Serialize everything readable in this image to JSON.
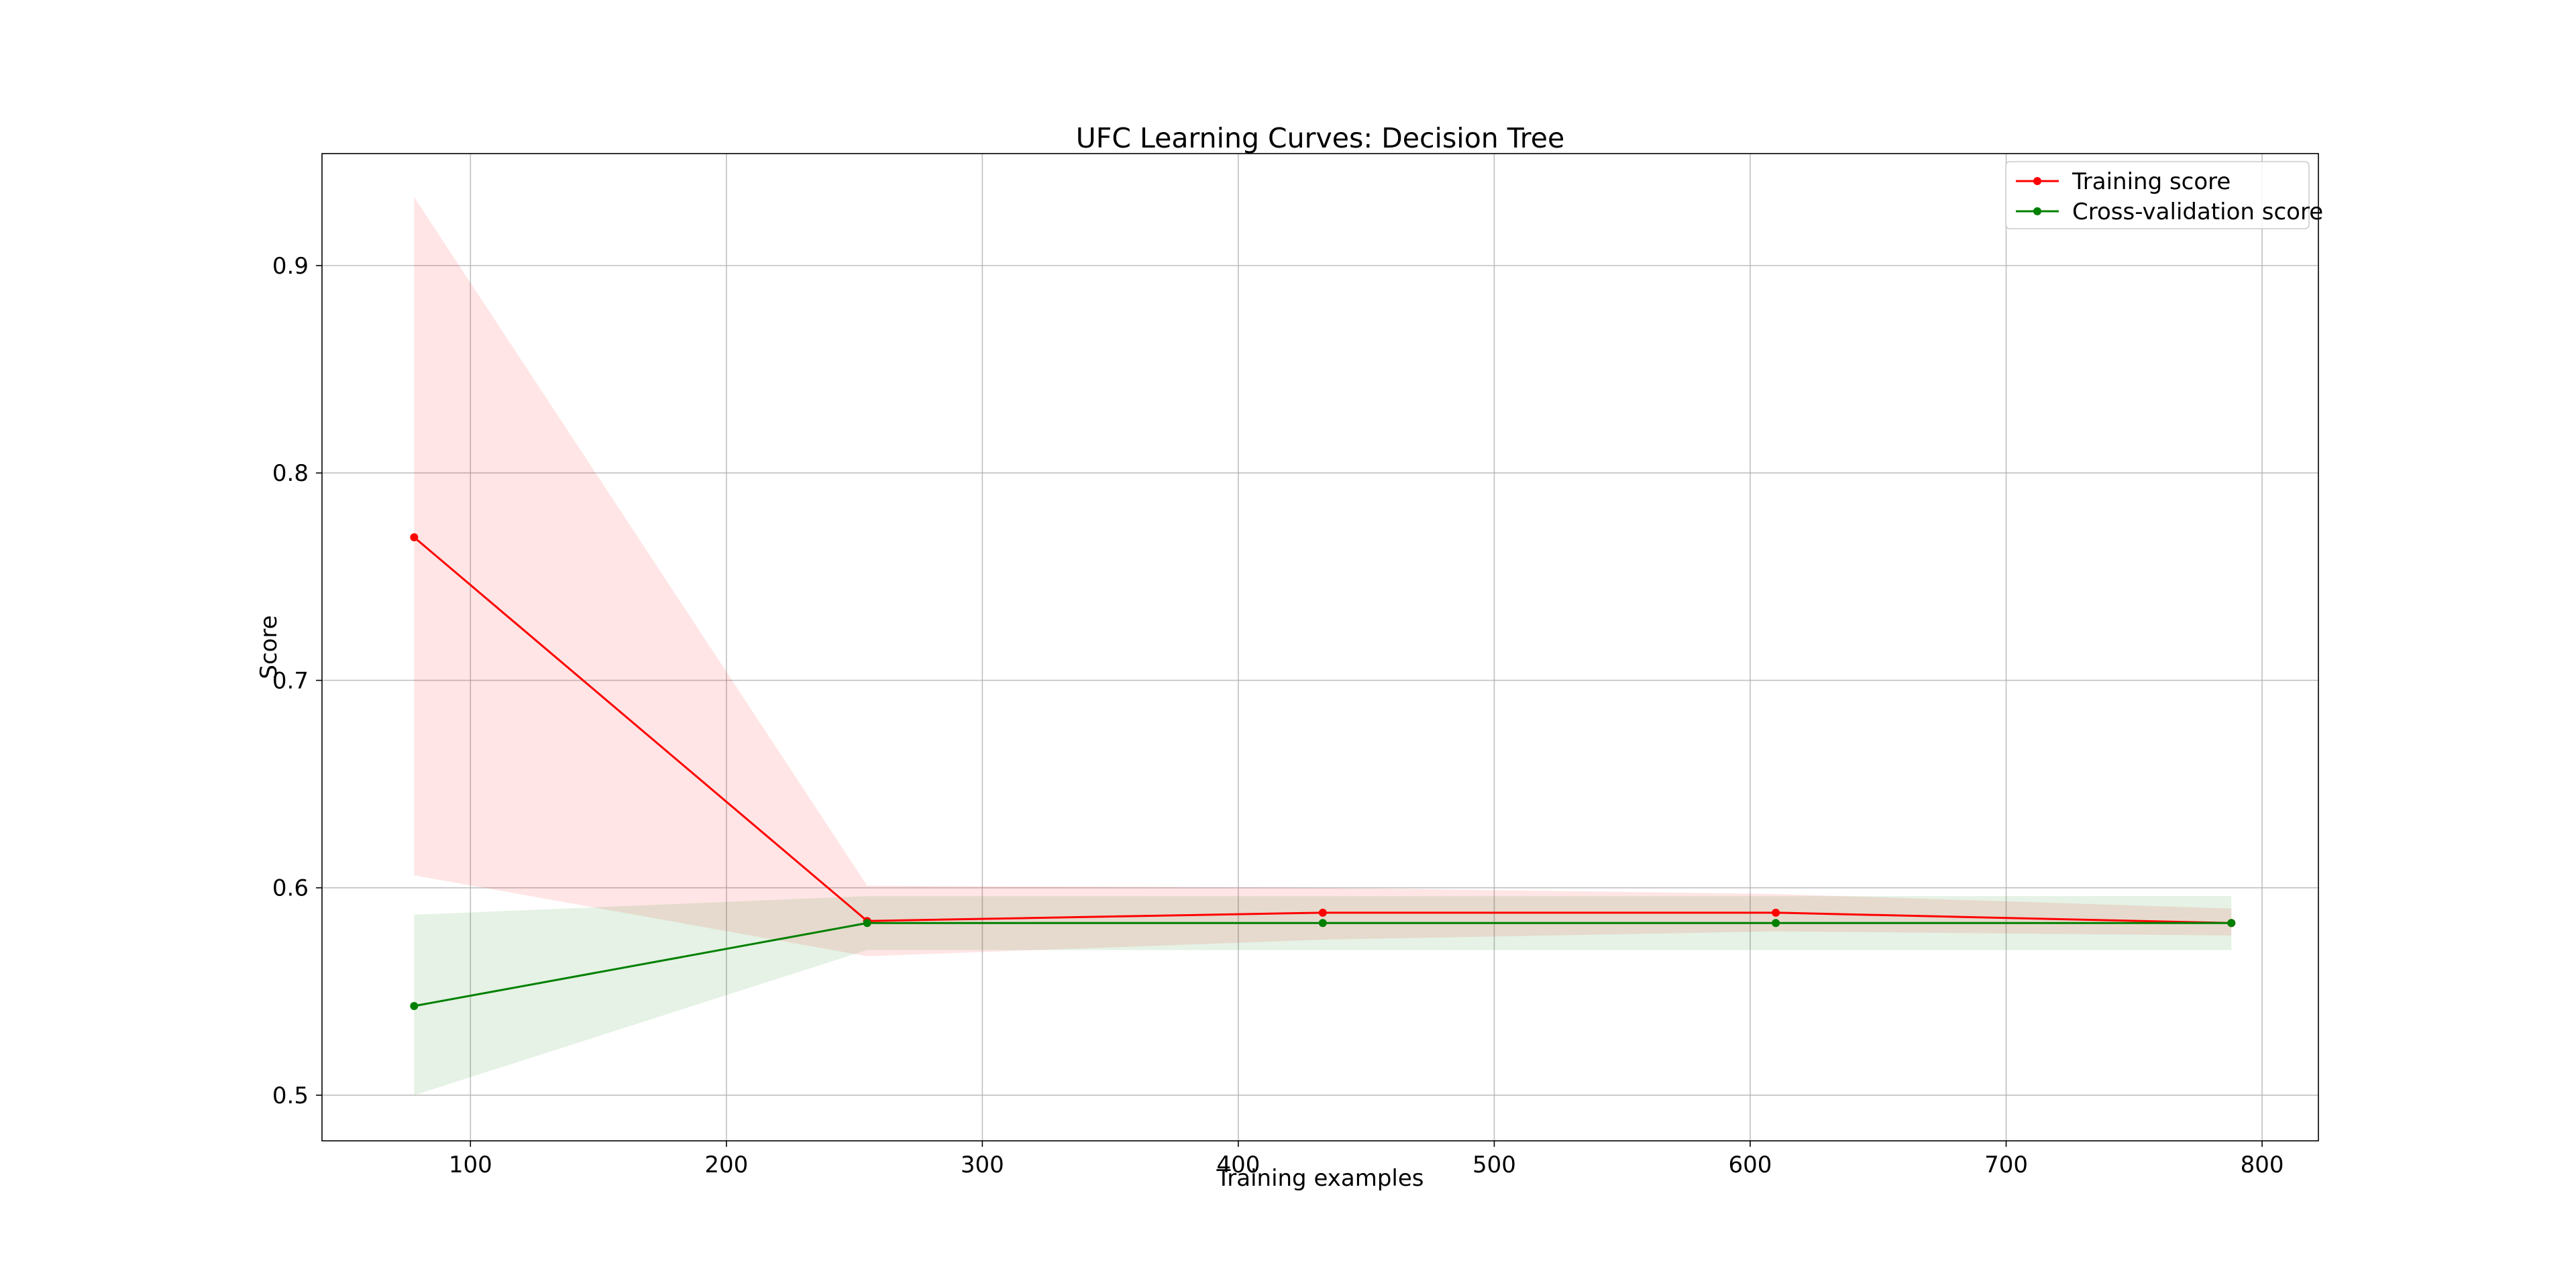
{
  "chart_data": {
    "type": "line",
    "title": "UFC Learning Curves: Decision Tree",
    "xlabel": "Training examples",
    "ylabel": "Score",
    "xlim": [
      42,
      822
    ],
    "ylim": [
      0.478,
      0.954
    ],
    "xticks": [
      100,
      200,
      300,
      400,
      500,
      600,
      700,
      800
    ],
    "yticks": [
      0.5,
      0.6,
      0.7,
      0.8,
      0.9
    ],
    "xtick_labels": [
      "100",
      "200",
      "300",
      "400",
      "500",
      "600",
      "700",
      "800"
    ],
    "ytick_labels": [
      "0.5",
      "0.6",
      "0.7",
      "0.8",
      "0.9"
    ],
    "grid": true,
    "legend_position": "top-right",
    "x": [
      78,
      255,
      433,
      610,
      788
    ],
    "series": [
      {
        "name": "Training score",
        "color": "#ff0000",
        "fill_color": "#ff0000",
        "values": [
          0.769,
          0.584,
          0.588,
          0.588,
          0.583
        ],
        "upper": [
          0.933,
          0.601,
          0.6,
          0.597,
          0.59
        ],
        "lower": [
          0.606,
          0.567,
          0.575,
          0.579,
          0.577
        ]
      },
      {
        "name": "Cross-validation score",
        "color": "#008000",
        "fill_color": "#008000",
        "values": [
          0.543,
          0.583,
          0.583,
          0.583,
          0.583
        ],
        "upper": [
          0.587,
          0.596,
          0.596,
          0.596,
          0.596
        ],
        "lower": [
          0.5,
          0.57,
          0.57,
          0.57,
          0.57
        ]
      }
    ]
  }
}
